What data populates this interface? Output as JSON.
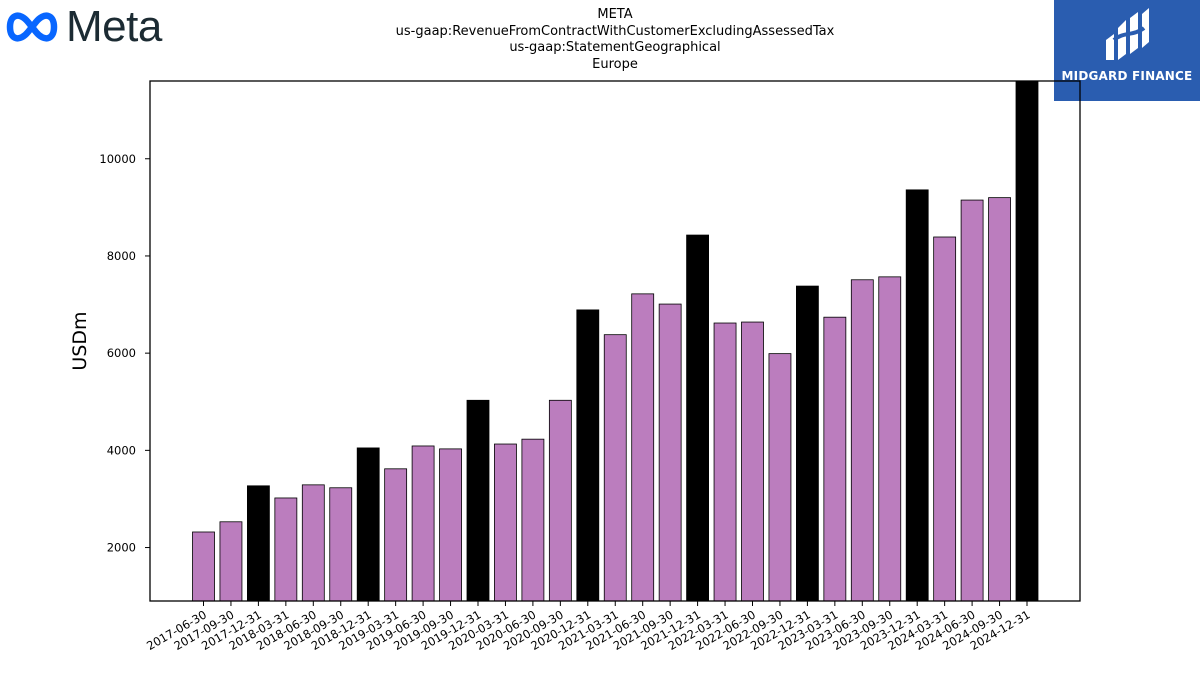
{
  "brand": {
    "left_logo_text": "Meta",
    "right_logo_text": "MIDGARD FINANCE",
    "right_logo_bg": "#2a5db0",
    "meta_blue": "#0866ff"
  },
  "chart_data": {
    "type": "bar",
    "title_lines": [
      "META",
      "us-gaap:RevenueFromContractWithCustomerExcludingAssessedTax",
      "us-gaap:StatementGeographical",
      "Europe"
    ],
    "ylabel": "USDm",
    "xlabel": "",
    "ylim": [
      900,
      11600
    ],
    "yticks": [
      2000,
      4000,
      6000,
      8000,
      10000
    ],
    "grid": false,
    "colors": {
      "quarter": "#bb7dbe",
      "year_end": "#000000"
    },
    "categories": [
      "2017-06-30",
      "2017-09-30",
      "2017-12-31",
      "2018-03-31",
      "2018-06-30",
      "2018-09-30",
      "2018-12-31",
      "2019-03-31",
      "2019-06-30",
      "2019-09-30",
      "2019-12-31",
      "2020-03-31",
      "2020-06-30",
      "2020-09-30",
      "2020-12-31",
      "2021-03-31",
      "2021-06-30",
      "2021-09-30",
      "2021-12-31",
      "2022-03-31",
      "2022-06-30",
      "2022-09-30",
      "2022-12-31",
      "2023-03-31",
      "2023-06-30",
      "2023-09-30",
      "2023-12-31",
      "2024-03-31",
      "2024-06-30",
      "2024-09-30",
      "2024-12-31"
    ],
    "values": [
      2320,
      2530,
      3270,
      3020,
      3290,
      3230,
      4050,
      3620,
      4090,
      4030,
      5030,
      4130,
      4230,
      5030,
      6890,
      6380,
      7220,
      7010,
      8430,
      6620,
      6640,
      5990,
      7380,
      6740,
      7510,
      7570,
      9360,
      8390,
      9150,
      9200,
      11600
    ],
    "year_end": [
      false,
      false,
      true,
      false,
      false,
      false,
      true,
      false,
      false,
      false,
      true,
      false,
      false,
      false,
      true,
      false,
      false,
      false,
      true,
      false,
      false,
      false,
      true,
      false,
      false,
      false,
      true,
      false,
      false,
      false,
      true
    ]
  }
}
